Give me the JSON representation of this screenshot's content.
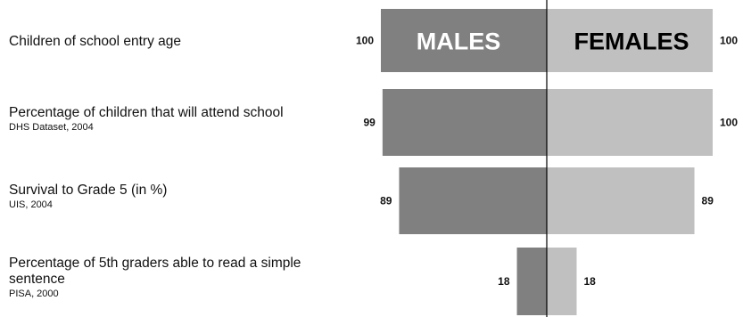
{
  "title": "",
  "colors": {
    "males": "#808080",
    "females": "#c0c0c0",
    "axis": "#000000",
    "text": "#000000"
  },
  "chart_data": {
    "type": "bar",
    "orientation": "horizontal-diverging",
    "categories": [
      {
        "label": "Children of school entry age",
        "source": ""
      },
      {
        "label": "Percentage of children that will attend school",
        "source": "DHS Dataset, 2004"
      },
      {
        "label": "Survival to Grade 5 (in %)",
        "source": "UIS, 2004"
      },
      {
        "label": "Percentage of 5th graders able to read a simple sentence",
        "source": "PISA, 2000"
      }
    ],
    "series": [
      {
        "name": "MALES",
        "values": [
          100,
          99,
          89,
          18
        ]
      },
      {
        "name": "FEMALES",
        "values": [
          100,
          100,
          89,
          18
        ]
      }
    ],
    "value_labels": {
      "MALES": [
        "100",
        "99",
        "89",
        "18"
      ],
      "FEMALES": [
        "100",
        "100",
        "89",
        "18"
      ]
    },
    "xlim": [
      0,
      100
    ],
    "grid": false,
    "legend": "inside-top-bars"
  }
}
